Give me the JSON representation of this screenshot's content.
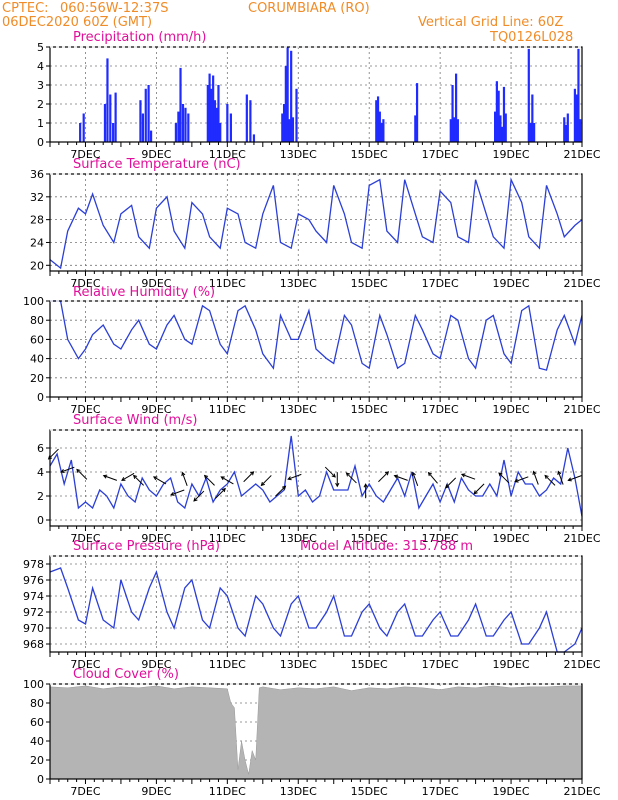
{
  "header": {
    "source": "CPTEC:",
    "location_coords": "060:56W-12:37S",
    "location_name": "CORUMBIARA (RO)",
    "run": "06DEC2020 60Z (GMT)",
    "grid_note": "Vertical Grid Line: 60Z",
    "code": "TQ0126L028"
  },
  "x_tick_labels": [
    "7DEC",
    "9DEC",
    "11DEC",
    "13DEC",
    "15DEC",
    "17DEC",
    "19DEC",
    "21DEC"
  ],
  "chart_data": [
    {
      "id": "precip",
      "type": "bar",
      "title": "Precipitation (mm/h)",
      "xlim": [
        6.0,
        21.0
      ],
      "ylim": [
        0,
        5
      ],
      "yticks": [
        0,
        1,
        2,
        3,
        4,
        5
      ],
      "color": "#1f2bff",
      "x": [
        6.85,
        6.95,
        7.55,
        7.62,
        7.7,
        7.78,
        7.85,
        8.55,
        8.62,
        8.7,
        8.78,
        8.85,
        9.55,
        9.62,
        9.68,
        9.75,
        9.82,
        9.9,
        10.45,
        10.5,
        10.55,
        10.6,
        10.65,
        10.7,
        10.75,
        10.8,
        11.0,
        11.1,
        11.55,
        11.65,
        11.75,
        12.55,
        12.6,
        12.65,
        12.7,
        12.75,
        12.8,
        12.85,
        12.95,
        15.2,
        15.25,
        15.3,
        15.35,
        15.4,
        16.3,
        16.35,
        17.3,
        17.35,
        17.4,
        17.45,
        17.5,
        18.55,
        18.6,
        18.65,
        18.7,
        18.75,
        18.8,
        18.85,
        19.5,
        19.55,
        19.6,
        19.65,
        20.5,
        20.55,
        20.6,
        20.8,
        20.85,
        20.9,
        20.95
      ],
      "values": [
        1.0,
        1.5,
        2.0,
        4.4,
        2.5,
        1.0,
        2.6,
        2.2,
        1.5,
        2.8,
        3.0,
        0.6,
        1.0,
        1.6,
        3.9,
        2.0,
        1.8,
        1.5,
        3.0,
        3.6,
        2.8,
        3.5,
        2.2,
        1.8,
        3.0,
        1.0,
        2.0,
        1.5,
        2.5,
        2.2,
        0.4,
        1.5,
        2.0,
        4.0,
        5.0,
        1.2,
        4.8,
        1.3,
        2.8,
        2.2,
        2.4,
        1.6,
        1.0,
        1.2,
        1.4,
        3.1,
        1.2,
        3.0,
        1.3,
        3.6,
        1.2,
        1.6,
        3.2,
        2.7,
        1.4,
        0.8,
        2.9,
        1.5,
        4.9,
        1.0,
        2.5,
        1.0,
        1.3,
        0.9,
        1.5,
        2.8,
        2.5,
        4.9,
        1.2
      ]
    },
    {
      "id": "temp",
      "type": "line",
      "title": "Surface Temperature (nC)",
      "xlim": [
        6.0,
        21.0
      ],
      "ylim": [
        19,
        36
      ],
      "yticks": [
        20,
        24,
        28,
        32,
        36
      ],
      "color": "#2b3fd6",
      "x": [
        6.0,
        6.3,
        6.5,
        6.8,
        7.0,
        7.2,
        7.5,
        7.8,
        8.0,
        8.3,
        8.5,
        8.8,
        9.0,
        9.3,
        9.5,
        9.8,
        10.0,
        10.3,
        10.5,
        10.8,
        11.0,
        11.3,
        11.5,
        11.8,
        12.0,
        12.3,
        12.5,
        12.8,
        13.0,
        13.3,
        13.5,
        13.8,
        14.0,
        14.3,
        14.5,
        14.8,
        15.0,
        15.3,
        15.5,
        15.8,
        16.0,
        16.3,
        16.5,
        16.8,
        17.0,
        17.3,
        17.5,
        17.8,
        18.0,
        18.3,
        18.5,
        18.8,
        19.0,
        19.3,
        19.5,
        19.8,
        20.0,
        20.3,
        20.5,
        20.8,
        21.0
      ],
      "values": [
        21,
        19.5,
        26,
        30,
        29,
        32.5,
        27,
        24,
        29,
        30.5,
        25,
        23,
        30,
        32,
        26,
        23,
        31,
        29,
        25,
        23,
        30,
        29,
        24,
        23,
        29,
        34,
        24,
        23,
        29,
        28,
        26,
        24,
        34,
        29,
        24,
        23,
        34,
        35,
        26,
        24,
        35,
        29,
        25,
        24,
        33,
        31,
        25,
        24,
        35,
        29,
        25,
        23,
        35,
        31,
        25,
        23,
        34,
        29,
        25,
        27,
        28
      ]
    },
    {
      "id": "rh",
      "type": "line",
      "title": "Relative Humidity (%)",
      "xlim": [
        6.0,
        21.0
      ],
      "ylim": [
        0,
        100
      ],
      "yticks": [
        0,
        20,
        40,
        60,
        80,
        100
      ],
      "color": "#2b3fd6",
      "x": [
        6.0,
        6.3,
        6.5,
        6.8,
        7.0,
        7.2,
        7.5,
        7.8,
        8.0,
        8.3,
        8.5,
        8.8,
        9.0,
        9.3,
        9.5,
        9.8,
        10.0,
        10.3,
        10.5,
        10.8,
        11.0,
        11.3,
        11.5,
        11.8,
        12.0,
        12.3,
        12.5,
        12.8,
        13.0,
        13.3,
        13.5,
        13.8,
        14.0,
        14.3,
        14.5,
        14.8,
        15.0,
        15.3,
        15.5,
        15.8,
        16.0,
        16.3,
        16.5,
        16.8,
        17.0,
        17.3,
        17.5,
        17.8,
        18.0,
        18.3,
        18.5,
        18.8,
        19.0,
        19.3,
        19.5,
        19.8,
        20.0,
        20.3,
        20.5,
        20.8,
        21.0
      ],
      "values": [
        100,
        100,
        60,
        40,
        50,
        65,
        75,
        55,
        50,
        70,
        80,
        55,
        50,
        75,
        85,
        60,
        55,
        95,
        90,
        55,
        45,
        90,
        95,
        70,
        45,
        30,
        85,
        60,
        60,
        90,
        50,
        40,
        35,
        85,
        75,
        35,
        30,
        85,
        65,
        30,
        35,
        85,
        70,
        45,
        40,
        85,
        80,
        40,
        30,
        80,
        85,
        45,
        35,
        90,
        95,
        30,
        28,
        70,
        85,
        55,
        85
      ]
    },
    {
      "id": "wind",
      "type": "line",
      "title": "Surface Wind (m/s)",
      "xlim": [
        6.0,
        21.0
      ],
      "ylim": [
        -0.5,
        7.5
      ],
      "yticks": [
        0,
        2,
        4,
        6
      ],
      "color": "#2b3fd6",
      "x": [
        6.0,
        6.2,
        6.4,
        6.6,
        6.8,
        7.0,
        7.2,
        7.4,
        7.6,
        7.8,
        8.0,
        8.2,
        8.4,
        8.6,
        8.8,
        9.0,
        9.2,
        9.4,
        9.6,
        9.8,
        10.0,
        10.2,
        10.4,
        10.6,
        10.8,
        11.0,
        11.2,
        11.4,
        11.6,
        11.8,
        12.0,
        12.2,
        12.4,
        12.6,
        12.8,
        13.0,
        13.2,
        13.4,
        13.6,
        13.8,
        14.0,
        14.2,
        14.4,
        14.6,
        14.8,
        15.0,
        15.2,
        15.4,
        15.6,
        15.8,
        16.0,
        16.2,
        16.4,
        16.6,
        16.8,
        17.0,
        17.2,
        17.4,
        17.6,
        17.8,
        18.0,
        18.2,
        18.4,
        18.6,
        18.8,
        19.0,
        19.2,
        19.4,
        19.6,
        19.8,
        20.0,
        20.2,
        20.4,
        20.6,
        20.8,
        21.0
      ],
      "values": [
        4.5,
        5.5,
        3.0,
        5.0,
        1.0,
        1.5,
        1.0,
        2.5,
        2.0,
        1.0,
        3.0,
        2.0,
        1.5,
        3.5,
        2.5,
        2.0,
        3.0,
        3.5,
        1.5,
        1.0,
        3.0,
        2.0,
        3.5,
        1.5,
        2.5,
        3.0,
        4.0,
        2.0,
        2.5,
        3.0,
        2.5,
        1.5,
        2.0,
        2.5,
        7.0,
        2.0,
        2.5,
        1.5,
        2.0,
        4.0,
        2.5,
        2.5,
        2.5,
        4.5,
        2.0,
        3.0,
        2.0,
        1.5,
        2.5,
        3.5,
        2.0,
        4.0,
        1.0,
        2.0,
        3.0,
        1.5,
        3.0,
        1.5,
        3.5,
        2.5,
        2.0,
        2.0,
        3.0,
        2.0,
        5.0,
        2.0,
        4.0,
        3.0,
        3.0,
        2.0,
        2.5,
        3.5,
        3.0,
        6.0,
        3.5,
        0.3
      ]
    },
    {
      "id": "pressure",
      "type": "line",
      "title": "Surface Pressure (hPa)",
      "subtitle": "Model Altitude: 315.788 m",
      "xlim": [
        6.0,
        21.0
      ],
      "ylim": [
        967,
        979
      ],
      "yticks": [
        968,
        970,
        972,
        974,
        976,
        978
      ],
      "color": "#2b3fd6",
      "x": [
        6.0,
        6.3,
        6.5,
        6.8,
        7.0,
        7.2,
        7.5,
        7.8,
        8.0,
        8.3,
        8.5,
        8.8,
        9.0,
        9.3,
        9.5,
        9.8,
        10.0,
        10.3,
        10.5,
        10.8,
        11.0,
        11.3,
        11.5,
        11.8,
        12.0,
        12.3,
        12.5,
        12.8,
        13.0,
        13.3,
        13.5,
        13.8,
        14.0,
        14.3,
        14.5,
        14.8,
        15.0,
        15.3,
        15.5,
        15.8,
        16.0,
        16.3,
        16.5,
        16.8,
        17.0,
        17.3,
        17.5,
        17.8,
        18.0,
        18.3,
        18.5,
        18.8,
        19.0,
        19.3,
        19.5,
        19.8,
        20.0,
        20.3,
        20.5,
        20.8,
        21.0
      ],
      "values": [
        977,
        977.5,
        975,
        971,
        970.5,
        975,
        971,
        970,
        976,
        972,
        971,
        975,
        977,
        972,
        970,
        975,
        976,
        971,
        970,
        975,
        974,
        970,
        969,
        974,
        973,
        970,
        969,
        973,
        974,
        970,
        970,
        972,
        974,
        969,
        969,
        972,
        973,
        970,
        969,
        972,
        973,
        969,
        969,
        971,
        972,
        969,
        969,
        971,
        973,
        969,
        969,
        971,
        972,
        968,
        968,
        970,
        972,
        967,
        967,
        968,
        970
      ]
    },
    {
      "id": "cloud",
      "type": "area",
      "title": "Cloud Cover (%)",
      "xlim": [
        6.0,
        21.0
      ],
      "ylim": [
        0,
        100
      ],
      "yticks": [
        0,
        20,
        40,
        60,
        80,
        100
      ],
      "color": "#b4b4b4",
      "x": [
        6.0,
        6.5,
        7.0,
        7.5,
        8.0,
        8.5,
        9.0,
        9.5,
        10.0,
        10.5,
        11.0,
        11.1,
        11.2,
        11.3,
        11.4,
        11.5,
        11.6,
        11.7,
        11.8,
        11.9,
        12.0,
        12.5,
        13.0,
        13.5,
        14.0,
        14.5,
        15.0,
        15.5,
        16.0,
        16.5,
        17.0,
        17.5,
        18.0,
        18.5,
        19.0,
        19.5,
        20.0,
        20.5,
        21.0
      ],
      "values": [
        97,
        96,
        98,
        95,
        97,
        96,
        98,
        95,
        97,
        96,
        95,
        80,
        75,
        10,
        40,
        20,
        5,
        30,
        20,
        96,
        97,
        94,
        96,
        95,
        97,
        93,
        96,
        95,
        97,
        96,
        94,
        97,
        96,
        98,
        96,
        97,
        97,
        98,
        98
      ]
    }
  ],
  "wind_arrows": [
    {
      "x": 6.1,
      "wind": 5.5,
      "angle": 225
    },
    {
      "x": 6.5,
      "wind": 4.2,
      "angle": 200
    },
    {
      "x": 6.9,
      "wind": 3.8,
      "angle": 135
    },
    {
      "x": 7.7,
      "wind": 3.5,
      "angle": 160
    },
    {
      "x": 8.2,
      "wind": 3.6,
      "angle": 210
    },
    {
      "x": 8.5,
      "wind": 3.3,
      "angle": 135
    },
    {
      "x": 9.1,
      "wind": 3.3,
      "angle": 150
    },
    {
      "x": 9.6,
      "wind": 2.3,
      "angle": 200
    },
    {
      "x": 9.8,
      "wind": 3.4,
      "angle": 110
    },
    {
      "x": 10.2,
      "wind": 2.0,
      "angle": 225
    },
    {
      "x": 10.5,
      "wind": 3.3,
      "angle": 135
    },
    {
      "x": 10.8,
      "wind": 2.2,
      "angle": 45
    },
    {
      "x": 11.0,
      "wind": 3.3,
      "angle": 150
    },
    {
      "x": 11.6,
      "wind": 3.6,
      "angle": 45
    },
    {
      "x": 12.1,
      "wind": 3.3,
      "angle": 225
    },
    {
      "x": 12.5,
      "wind": 2.4,
      "angle": 45
    },
    {
      "x": 12.9,
      "wind": 3.6,
      "angle": 200
    },
    {
      "x": 13.9,
      "wind": 4.0,
      "angle": 315
    },
    {
      "x": 14.1,
      "wind": 3.4,
      "angle": 270
    },
    {
      "x": 14.5,
      "wind": 3.5,
      "angle": 135
    },
    {
      "x": 14.9,
      "wind": 2.4,
      "angle": 90
    },
    {
      "x": 15.4,
      "wind": 3.6,
      "angle": 45
    },
    {
      "x": 15.9,
      "wind": 3.5,
      "angle": 160
    },
    {
      "x": 16.3,
      "wind": 3.4,
      "angle": 110
    },
    {
      "x": 16.8,
      "wind": 3.5,
      "angle": 130
    },
    {
      "x": 17.3,
      "wind": 3.1,
      "angle": 225
    },
    {
      "x": 17.8,
      "wind": 3.6,
      "angle": 160
    },
    {
      "x": 18.1,
      "wind": 2.6,
      "angle": 225
    },
    {
      "x": 18.8,
      "wind": 3.5,
      "angle": 135
    },
    {
      "x": 19.3,
      "wind": 3.4,
      "angle": 200
    },
    {
      "x": 19.7,
      "wind": 3.5,
      "angle": 110
    },
    {
      "x": 20.1,
      "wind": 3.3,
      "angle": 135
    },
    {
      "x": 20.4,
      "wind": 3.5,
      "angle": 110
    },
    {
      "x": 20.8,
      "wind": 3.5,
      "angle": 200
    }
  ]
}
